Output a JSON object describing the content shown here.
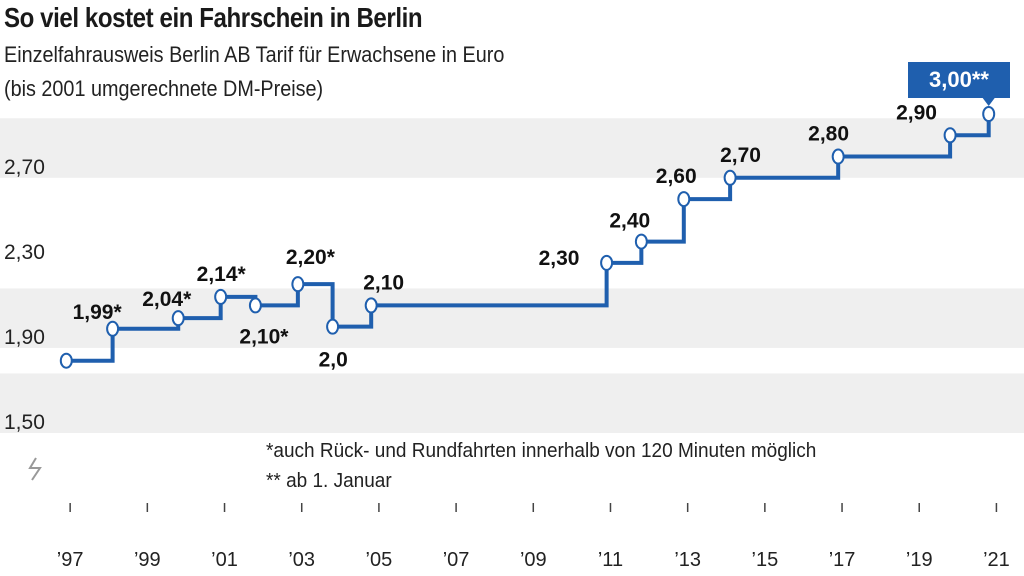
{
  "chart_data": {
    "type": "line",
    "step": true,
    "title": "So viel kostet ein Fahrschein in Berlin",
    "subtitle_line1": "Einzelfahrausweis Berlin AB Tarif für Erwachsene in Euro",
    "subtitle_line2": "(bis 2001 umgerechnete DM-Preise)",
    "xlim": [
      1996.4,
      2021.3
    ],
    "ylim": [
      1.5,
      3.0
    ],
    "yticks": [
      {
        "value": 1.5,
        "label": "1,50"
      },
      {
        "value": 1.9,
        "label": "1,90"
      },
      {
        "value": 2.3,
        "label": "2,30"
      },
      {
        "value": 2.7,
        "label": "2,70"
      }
    ],
    "xticks": [
      {
        "value": 1997,
        "label": "’97"
      },
      {
        "value": 1999,
        "label": "’99"
      },
      {
        "value": 2001,
        "label": "’01"
      },
      {
        "value": 2003,
        "label": "’03"
      },
      {
        "value": 2005,
        "label": "’05"
      },
      {
        "value": 2007,
        "label": "’07"
      },
      {
        "value": 2009,
        "label": "’09"
      },
      {
        "value": 2011,
        "label": "’11"
      },
      {
        "value": 2013,
        "label": "’13"
      },
      {
        "value": 2015,
        "label": "’15"
      },
      {
        "value": 2017,
        "label": "’17"
      },
      {
        "value": 2019,
        "label": "’19"
      },
      {
        "value": 2021,
        "label": "’21"
      }
    ],
    "points": [
      {
        "x": 1996.9,
        "y": 1.84,
        "label": ""
      },
      {
        "x": 1998.1,
        "y": 1.99,
        "label": "1,99*"
      },
      {
        "x": 1999.8,
        "y": 2.04,
        "label": "2,04*"
      },
      {
        "x": 2000.9,
        "y": 2.14,
        "label": "2,14*"
      },
      {
        "x": 2001.8,
        "y": 2.1,
        "label": "2,10*"
      },
      {
        "x": 2002.9,
        "y": 2.2,
        "label": "2,20*"
      },
      {
        "x": 2003.8,
        "y": 2.0,
        "label": "2,0"
      },
      {
        "x": 2004.8,
        "y": 2.1,
        "label": "2,10"
      },
      {
        "x": 2010.9,
        "y": 2.3,
        "label": "2,30"
      },
      {
        "x": 2011.8,
        "y": 2.4,
        "label": "2,40"
      },
      {
        "x": 2012.9,
        "y": 2.6,
        "label": "2,60"
      },
      {
        "x": 2014.1,
        "y": 2.7,
        "label": "2,70"
      },
      {
        "x": 2016.9,
        "y": 2.8,
        "label": "2,80"
      },
      {
        "x": 2019.8,
        "y": 2.9,
        "label": "2,90"
      },
      {
        "x": 2020.8,
        "y": 3.0,
        "label": "3,00**"
      }
    ],
    "annotations": [
      "*auch Rück- und Rundfahrten innerhalb von 120 Minuten möglich",
      "** ab 1. Januar"
    ]
  },
  "colors": {
    "line": "#1f5fae",
    "band": "#efefef",
    "callout_bg": "#1f5fae",
    "callout_text": "#ffffff"
  }
}
